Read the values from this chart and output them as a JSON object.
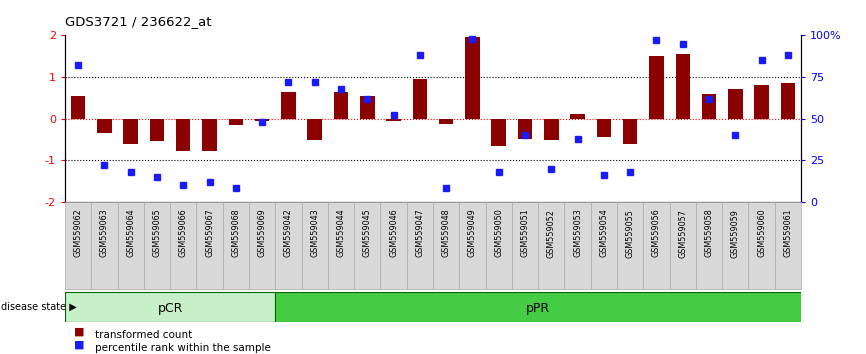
{
  "title": "GDS3721 / 236622_at",
  "samples": [
    "GSM559062",
    "GSM559063",
    "GSM559064",
    "GSM559065",
    "GSM559066",
    "GSM559067",
    "GSM559068",
    "GSM559069",
    "GSM559042",
    "GSM559043",
    "GSM559044",
    "GSM559045",
    "GSM559046",
    "GSM559047",
    "GSM559048",
    "GSM559049",
    "GSM559050",
    "GSM559051",
    "GSM559052",
    "GSM559053",
    "GSM559054",
    "GSM559055",
    "GSM559056",
    "GSM559057",
    "GSM559058",
    "GSM559059",
    "GSM559060",
    "GSM559061"
  ],
  "transformed_count": [
    0.55,
    -0.35,
    -0.62,
    -0.55,
    -0.78,
    -0.78,
    -0.15,
    -0.05,
    0.65,
    -0.52,
    0.65,
    0.55,
    -0.05,
    0.95,
    -0.12,
    1.95,
    -0.65,
    -0.48,
    -0.52,
    0.1,
    -0.45,
    -0.62,
    1.5,
    1.55,
    0.6,
    0.72,
    0.8,
    0.85
  ],
  "percentile_rank": [
    82,
    22,
    18,
    15,
    10,
    12,
    8,
    48,
    72,
    72,
    68,
    62,
    52,
    88,
    8,
    98,
    18,
    40,
    20,
    38,
    16,
    18,
    97,
    95,
    62,
    40,
    85,
    88
  ],
  "pcr_count": 8,
  "ppr_count": 20,
  "bar_color": "#8B0000",
  "dot_color": "#1a1aff",
  "ylim": [
    -2,
    2
  ],
  "right_yticks": [
    0,
    25,
    50,
    75,
    100
  ],
  "right_yticklabels": [
    "0",
    "25",
    "50",
    "75",
    "100%"
  ],
  "pcr_color_light": "#c8f0c8",
  "pcr_color": "#a0e8a0",
  "ppr_color": "#44cc44",
  "group_border": "#006600",
  "background": "#ffffff"
}
